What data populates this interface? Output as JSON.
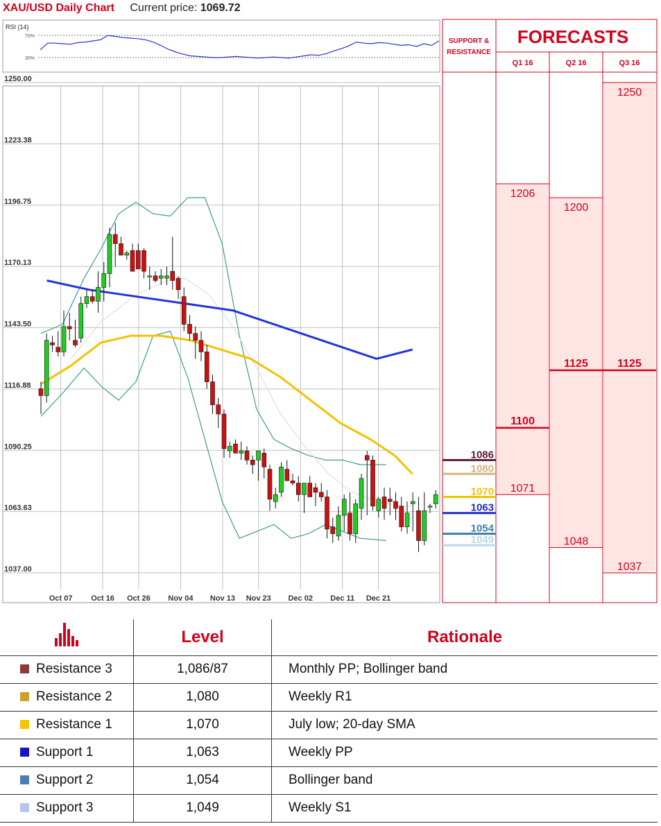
{
  "header": {
    "title": "XAU/USD Daily Chart",
    "price_label": "Current price:",
    "price_value": "1069.72"
  },
  "rsi": {
    "label": "RSI (14)",
    "upper": "70%",
    "lower": "30%"
  },
  "colors": {
    "red": "#d0021b",
    "up": "#22cc22",
    "down": "#cc1111",
    "sma20": "#dddddd",
    "sma50": "#f5c000",
    "sma100": "#2233dd",
    "bollinger": "#3a9a90",
    "forecast_fill": "#ffe4e4"
  },
  "chart_data": {
    "type": "candlestick",
    "y_ticks": [
      "1250.00",
      "1223.38",
      "1196.75",
      "1170.13",
      "1143.50",
      "1116.88",
      "1090.25",
      "1063.63",
      "1037.00"
    ],
    "ylim": [
      1037.0,
      1250.0
    ],
    "x_ticks": [
      {
        "label": "Oct 07",
        "i": 1
      },
      {
        "label": "Oct 16",
        "i": 8
      },
      {
        "label": "Oct 26",
        "i": 14
      },
      {
        "label": "Nov 04",
        "i": 21
      },
      {
        "label": "Nov 13",
        "i": 28
      },
      {
        "label": "Nov 23",
        "i": 34
      },
      {
        "label": "Dec 02",
        "i": 41
      },
      {
        "label": "Dec 11",
        "i": 48
      },
      {
        "label": "Dec 21",
        "i": 54
      }
    ],
    "candles": [
      [
        1117,
        1120,
        1106,
        1114
      ],
      [
        1114,
        1141,
        1111,
        1138
      ],
      [
        1137,
        1140,
        1133,
        1136
      ],
      [
        1135,
        1142,
        1131,
        1133
      ],
      [
        1133,
        1151,
        1131,
        1144
      ],
      [
        1144,
        1150,
        1138,
        1143
      ],
      [
        1138,
        1147,
        1135,
        1136
      ],
      [
        1139,
        1157,
        1137,
        1154
      ],
      [
        1154,
        1160,
        1152,
        1157
      ],
      [
        1157,
        1160,
        1154,
        1155
      ],
      [
        1155,
        1168,
        1150,
        1161
      ],
      [
        1161,
        1172,
        1155,
        1167
      ],
      [
        1167,
        1187,
        1161,
        1184
      ],
      [
        1184,
        1189,
        1170,
        1180
      ],
      [
        1180,
        1183,
        1175,
        1175
      ],
      [
        1175,
        1177,
        1173,
        1176
      ],
      [
        1177,
        1180,
        1168,
        1168
      ],
      [
        1177,
        1180,
        1171,
        1169
      ],
      [
        1177,
        1178,
        1165,
        1168
      ],
      [
        1166,
        1170,
        1160,
        1166
      ],
      [
        1166,
        1168,
        1163,
        1164
      ],
      [
        1165,
        1169,
        1162,
        1166
      ],
      [
        1165,
        1170,
        1162,
        1166
      ],
      [
        1168,
        1183,
        1160,
        1164
      ],
      [
        1165,
        1166,
        1156,
        1160
      ],
      [
        1157,
        1161,
        1142,
        1145
      ],
      [
        1145,
        1149,
        1138,
        1141
      ],
      [
        1141,
        1144,
        1130,
        1138
      ],
      [
        1138,
        1142,
        1129,
        1133
      ],
      [
        1133,
        1136,
        1117,
        1120
      ],
      [
        1120,
        1123,
        1106,
        1110
      ],
      [
        1110,
        1113,
        1100,
        1106
      ],
      [
        1106,
        1108,
        1087,
        1091
      ],
      [
        1090,
        1094,
        1087,
        1092
      ],
      [
        1093,
        1095,
        1089,
        1089
      ],
      [
        1089,
        1094,
        1086,
        1090
      ],
      [
        1090,
        1092,
        1084,
        1086
      ],
      [
        1086,
        1088,
        1080,
        1084
      ],
      [
        1086,
        1090,
        1077,
        1090
      ],
      [
        1089,
        1091,
        1078,
        1083
      ],
      [
        1082,
        1084,
        1064,
        1069
      ],
      [
        1068,
        1074,
        1065,
        1071
      ],
      [
        1072,
        1085,
        1070,
        1083
      ],
      [
        1082,
        1086,
        1077,
        1077
      ],
      [
        1077,
        1080,
        1075,
        1076
      ],
      [
        1076,
        1079,
        1068,
        1071
      ],
      [
        1071,
        1074,
        1063,
        1076
      ],
      [
        1076,
        1079,
        1070,
        1070
      ],
      [
        1074,
        1076,
        1066,
        1072
      ],
      [
        1072,
        1076,
        1068,
        1070
      ],
      [
        1070,
        1073,
        1052,
        1056
      ],
      [
        1057,
        1061,
        1050,
        1054
      ],
      [
        1053,
        1066,
        1051,
        1062
      ],
      [
        1062,
        1071,
        1055,
        1069
      ],
      [
        1063,
        1072,
        1051,
        1054
      ],
      [
        1054,
        1069,
        1050,
        1067
      ],
      [
        1065,
        1080,
        1060,
        1078
      ],
      [
        1088,
        1090,
        1062,
        1086
      ],
      [
        1086,
        1088,
        1064,
        1066
      ],
      [
        1064,
        1070,
        1061,
        1069
      ],
      [
        1070,
        1074,
        1060,
        1065
      ],
      [
        1069,
        1074,
        1062,
        1068
      ],
      [
        1068,
        1072,
        1060,
        1065
      ],
      [
        1066,
        1070,
        1055,
        1057
      ],
      [
        1057,
        1068,
        1054,
        1063
      ],
      [
        1067,
        1072,
        1055,
        1068
      ],
      [
        1064,
        1070,
        1046,
        1051
      ],
      [
        1051,
        1072,
        1049,
        1064
      ],
      [
        1066,
        1067,
        1063,
        1066
      ],
      [
        1067,
        1073,
        1065,
        1071
      ]
    ],
    "sma100": [
      [
        1,
        1164
      ],
      [
        8,
        1160
      ],
      [
        16,
        1157
      ],
      [
        24,
        1154
      ],
      [
        32,
        1151
      ],
      [
        40,
        1144
      ],
      [
        48,
        1137
      ],
      [
        56,
        1130
      ],
      [
        62,
        1134
      ]
    ],
    "sma50": [
      [
        0,
        1119
      ],
      [
        5,
        1127
      ],
      [
        10,
        1137
      ],
      [
        15,
        1140
      ],
      [
        20,
        1140
      ],
      [
        25,
        1138
      ],
      [
        30,
        1134
      ],
      [
        35,
        1130
      ],
      [
        40,
        1122
      ],
      [
        45,
        1112
      ],
      [
        50,
        1102
      ],
      [
        55,
        1095
      ],
      [
        59,
        1088
      ],
      [
        62,
        1080
      ]
    ],
    "sma20": [
      [
        5,
        1130
      ],
      [
        10,
        1146
      ],
      [
        16,
        1158
      ],
      [
        21,
        1164
      ],
      [
        24,
        1165
      ],
      [
        28,
        1158
      ],
      [
        32,
        1144
      ],
      [
        36,
        1126
      ],
      [
        40,
        1106
      ],
      [
        44,
        1092
      ],
      [
        48,
        1080
      ],
      [
        52,
        1072
      ],
      [
        56,
        1068
      ],
      [
        60,
        1066
      ],
      [
        62,
        1066
      ]
    ],
    "boll_upper": [
      [
        0,
        1141
      ],
      [
        5,
        1145
      ],
      [
        10,
        1165
      ],
      [
        14,
        1178
      ],
      [
        18,
        1193
      ],
      [
        22,
        1198
      ],
      [
        26,
        1193
      ],
      [
        30,
        1192
      ],
      [
        34,
        1200
      ],
      [
        38,
        1200
      ],
      [
        42,
        1180
      ],
      [
        46,
        1140
      ],
      [
        50,
        1108
      ],
      [
        54,
        1095
      ],
      [
        58,
        1091
      ],
      [
        62,
        1088
      ],
      [
        66,
        1086
      ],
      [
        70,
        1086
      ],
      [
        74,
        1084
      ],
      [
        80,
        1084
      ]
    ],
    "boll_lower": [
      [
        0,
        1105
      ],
      [
        5,
        1115
      ],
      [
        10,
        1126
      ],
      [
        14,
        1118
      ],
      [
        18,
        1112
      ],
      [
        22,
        1120
      ],
      [
        26,
        1140
      ],
      [
        30,
        1142
      ],
      [
        34,
        1122
      ],
      [
        38,
        1095
      ],
      [
        42,
        1068
      ],
      [
        46,
        1052
      ],
      [
        50,
        1055
      ],
      [
        54,
        1058
      ],
      [
        58,
        1052
      ],
      [
        62,
        1054
      ],
      [
        66,
        1058
      ],
      [
        70,
        1055
      ],
      [
        74,
        1052
      ],
      [
        80,
        1051
      ]
    ],
    "rsi_values": [
      44,
      56,
      56,
      55,
      54,
      57,
      58,
      60,
      62,
      70,
      68,
      66,
      65,
      64,
      62,
      58,
      52,
      45,
      40,
      36,
      33,
      32,
      31,
      30,
      30,
      31,
      32,
      31,
      30,
      29,
      30,
      31,
      30,
      29,
      31,
      33,
      35,
      34,
      37,
      42,
      46,
      51,
      58,
      56,
      55,
      57,
      56,
      54,
      52,
      53,
      50,
      55,
      52,
      60
    ]
  },
  "sr_panel": {
    "title": "SUPPORT & RESISTANCE",
    "levels": [
      {
        "label": "1086",
        "value": 1086,
        "color": "#5a1a2e"
      },
      {
        "label": "1080",
        "value": 1080,
        "color": "#d6b37a"
      },
      {
        "label": "1070",
        "value": 1070,
        "color": "#f5c000"
      },
      {
        "label": "1063",
        "value": 1063,
        "color": "#1f2bc9"
      },
      {
        "label": "1054",
        "value": 1054,
        "color": "#3c7fa8"
      },
      {
        "label": "1049",
        "value": 1049,
        "color": "#b8dbe4"
      }
    ]
  },
  "forecasts": {
    "title": "FORECASTS",
    "columns": [
      {
        "label": "Q1 16",
        "high": "1206",
        "high_value": 1206,
        "low": "1071",
        "low_value": 1071,
        "mid": "1100",
        "mid_value": 1100
      },
      {
        "label": "Q2 16",
        "high": "1200",
        "high_value": 1200,
        "low": "1048",
        "low_value": 1048,
        "mid": "1125",
        "mid_value": 1125
      },
      {
        "label": "Q3 16",
        "high": "1250",
        "high_value": 1250,
        "low": "1037",
        "low_value": 1037,
        "mid": "1125",
        "mid_value": 1125
      }
    ]
  },
  "table": {
    "headers": {
      "level": "Level",
      "rationale": "Rationale"
    },
    "icon": "bar-chart-icon",
    "rows": [
      {
        "name": "Resistance 3",
        "level": "1,086/87",
        "rationale": "Monthly PP; Bollinger band",
        "color": "#8b3a3a"
      },
      {
        "name": "Resistance 2",
        "level": "1,080",
        "rationale": "Weekly R1",
        "color": "#c9a227"
      },
      {
        "name": "Resistance 1",
        "level": "1,070",
        "rationale": "July low; 20-day SMA",
        "color": "#f5c400"
      },
      {
        "name": "Support 1",
        "level": "1,063",
        "rationale": "Weekly PP",
        "color": "#1414c8"
      },
      {
        "name": "Support 2",
        "level": "1,054",
        "rationale": "Bollinger band",
        "color": "#4a7fb5"
      },
      {
        "name": "Support 3",
        "level": "1,049",
        "rationale": "Weekly S1",
        "color": "#b5c8e6"
      }
    ]
  }
}
